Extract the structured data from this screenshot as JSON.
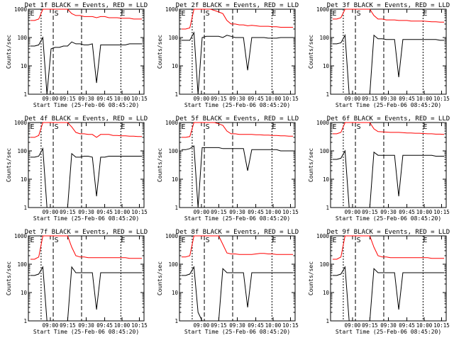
{
  "chart_data": [
    {
      "type": "line",
      "title": "Det 1f BLACK = Events, RED = LLD",
      "xlabel": "Start Time (25-Feb-06 08:45:20)",
      "ylabel": "Counts/sec",
      "x_ticks": [
        "09:00",
        "09:15",
        "09:30",
        "09:45",
        "10:00",
        "10:15"
      ],
      "y_ticks": [
        "1",
        "10",
        "100",
        "1000"
      ],
      "ylim": [
        1,
        1000
      ],
      "y_scale": "log",
      "markers": [
        "E",
        "S",
        "E"
      ],
      "series": [
        {
          "color": "#000000",
          "values": [
            50,
            50,
            55,
            100,
            1,
            40,
            45,
            45,
            50,
            50,
            70,
            60,
            60,
            55,
            55,
            60,
            2.5,
            55,
            55,
            55,
            55,
            55,
            55,
            55,
            60,
            60,
            60,
            60
          ]
        },
        {
          "color": "#ff0000",
          "values": [
            400,
            400,
            450,
            1000,
            1000,
            1000,
            1000,
            1000,
            1000,
            1000,
            700,
            600,
            600,
            550,
            550,
            550,
            500,
            550,
            550,
            500,
            500,
            500,
            480,
            480,
            480,
            450,
            450,
            450
          ]
        }
      ]
    },
    {
      "type": "line",
      "title": "Det 2f BLACK = Events, RED = LLD",
      "xlabel": "Start Time (25-Feb-06 08:45:20)",
      "ylabel": "Counts/sec",
      "x_ticks": [
        "09:00",
        "09:15",
        "09:30",
        "09:45",
        "10:00",
        "10:15"
      ],
      "y_ticks": [
        "1",
        "10",
        "100",
        "1000"
      ],
      "ylim": [
        1,
        1000
      ],
      "y_scale": "log",
      "markers": [
        "E",
        "S",
        "E"
      ],
      "series": [
        {
          "color": "#000000",
          "values": [
            80,
            80,
            80,
            150,
            1,
            100,
            110,
            110,
            110,
            110,
            100,
            120,
            110,
            100,
            100,
            100,
            7,
            100,
            100,
            100,
            100,
            95,
            95,
            95,
            100,
            100,
            100,
            100
          ]
        },
        {
          "color": "#ff0000",
          "values": [
            200,
            200,
            220,
            1000,
            1000,
            1000,
            1000,
            1000,
            900,
            800,
            700,
            400,
            300,
            300,
            280,
            280,
            260,
            270,
            260,
            250,
            250,
            250,
            240,
            240,
            230,
            230,
            230,
            230
          ]
        }
      ]
    },
    {
      "type": "line",
      "title": "Det 3f BLACK = Events, RED = LLD",
      "xlabel": "Start Time (25-Feb-06 08:45:20)",
      "ylabel": "Counts/sec",
      "x_ticks": [
        "09:00",
        "09:15",
        "09:30",
        "09:45",
        "10:00",
        "10:15"
      ],
      "y_ticks": [
        "1",
        "10",
        "100",
        "1000"
      ],
      "ylim": [
        1,
        1000
      ],
      "y_scale": "log",
      "markers": [
        "E",
        "S",
        "E"
      ],
      "series": [
        {
          "color": "#000000",
          "values": [
            60,
            60,
            65,
            120,
            1,
            1,
            1,
            1,
            1,
            1,
            120,
            90,
            90,
            85,
            85,
            85,
            4,
            85,
            85,
            85,
            85,
            85,
            85,
            85,
            85,
            85,
            80,
            80
          ]
        },
        {
          "color": "#ff0000",
          "values": [
            450,
            450,
            500,
            1000,
            1000,
            1000,
            1000,
            1000,
            1000,
            1000,
            600,
            450,
            450,
            420,
            420,
            420,
            400,
            400,
            400,
            380,
            380,
            380,
            380,
            370,
            360,
            360,
            350,
            350
          ]
        }
      ]
    },
    {
      "type": "line",
      "title": "Det 4f BLACK = Events, RED = LLD",
      "xlabel": "Start Time (25-Feb-06 08:45:20)",
      "ylabel": "Counts/sec",
      "x_ticks": [
        "09:00",
        "09:15",
        "09:30",
        "09:45",
        "10:00",
        "10:15"
      ],
      "y_ticks": [
        "1",
        "10",
        "100",
        "1000"
      ],
      "ylim": [
        1,
        1000
      ],
      "y_scale": "log",
      "markers": [
        "E",
        "S",
        "E"
      ],
      "series": [
        {
          "color": "#000000",
          "values": [
            60,
            60,
            65,
            120,
            1,
            1,
            1,
            1,
            1,
            1,
            80,
            60,
            60,
            65,
            65,
            60,
            2.5,
            60,
            60,
            65,
            65,
            65,
            65,
            65,
            65,
            65,
            65,
            65
          ]
        },
        {
          "color": "#ff0000",
          "values": [
            300,
            300,
            350,
            1000,
            1000,
            1000,
            1000,
            1000,
            1000,
            1000,
            700,
            450,
            400,
            400,
            380,
            380,
            300,
            380,
            380,
            380,
            350,
            350,
            340,
            340,
            330,
            330,
            320,
            320
          ]
        }
      ]
    },
    {
      "type": "line",
      "title": "Det 5f BLACK = Events, RED = LLD",
      "xlabel": "Start Time (25-Feb-06 08:45:20)",
      "ylabel": "Counts/sec",
      "x_ticks": [
        "09:00",
        "09:15",
        "09:30",
        "09:45",
        "10:00",
        "10:15"
      ],
      "y_ticks": [
        "1",
        "10",
        "100",
        "1000"
      ],
      "ylim": [
        1,
        1000
      ],
      "y_scale": "log",
      "markers": [
        "E",
        "S",
        "E"
      ],
      "series": [
        {
          "color": "#000000",
          "values": [
            110,
            110,
            120,
            150,
            1,
            130,
            130,
            130,
            130,
            130,
            120,
            120,
            120,
            120,
            120,
            120,
            20,
            110,
            110,
            110,
            110,
            110,
            110,
            110,
            100,
            100,
            100,
            100
          ]
        },
        {
          "color": "#ff0000",
          "values": [
            300,
            300,
            320,
            1000,
            1000,
            1000,
            1000,
            1000,
            1000,
            900,
            800,
            500,
            400,
            400,
            380,
            380,
            380,
            380,
            370,
            370,
            360,
            360,
            350,
            350,
            340,
            340,
            330,
            330
          ]
        }
      ]
    },
    {
      "type": "line",
      "title": "Det 6f BLACK = Events, RED = LLD",
      "xlabel": "Start Time (25-Feb-06 08:45:20)",
      "ylabel": "Counts/sec",
      "x_ticks": [
        "09:00",
        "09:15",
        "09:30",
        "09:45",
        "10:00",
        "10:15"
      ],
      "y_ticks": [
        "1",
        "10",
        "100",
        "1000"
      ],
      "ylim": [
        1,
        1000
      ],
      "y_scale": "log",
      "markers": [
        "E",
        "S",
        "E"
      ],
      "series": [
        {
          "color": "#000000",
          "values": [
            50,
            50,
            55,
            100,
            1,
            1,
            1,
            1,
            1,
            1,
            90,
            70,
            70,
            70,
            70,
            70,
            2.5,
            70,
            70,
            70,
            70,
            70,
            70,
            70,
            70,
            65,
            65,
            65
          ]
        },
        {
          "color": "#ff0000",
          "values": [
            400,
            400,
            450,
            1000,
            1000,
            1000,
            1000,
            1000,
            1000,
            1000,
            600,
            480,
            470,
            460,
            450,
            450,
            450,
            440,
            430,
            430,
            420,
            420,
            410,
            400,
            400,
            390,
            390,
            380
          ]
        }
      ]
    },
    {
      "type": "line",
      "title": "Det 7f BLACK = Events, RED = LLD",
      "xlabel": "Start Time (25-Feb-06 08:45:20)",
      "ylabel": "Counts/sec",
      "x_ticks": [
        "09:00",
        "09:15",
        "09:30",
        "09:45",
        "10:00",
        "10:15"
      ],
      "y_ticks": [
        "1",
        "10",
        "100",
        "1000"
      ],
      "ylim": [
        1,
        1000
      ],
      "y_scale": "log",
      "markers": [
        "E",
        "S",
        "E"
      ],
      "series": [
        {
          "color": "#000000",
          "values": [
            40,
            40,
            45,
            80,
            1,
            1,
            1,
            1,
            1,
            1,
            80,
            50,
            50,
            50,
            50,
            50,
            2.5,
            50,
            50,
            50,
            50,
            50,
            50,
            50,
            50,
            50,
            50,
            50
          ]
        },
        {
          "color": "#ff0000",
          "values": [
            150,
            150,
            180,
            1000,
            1000,
            1000,
            1000,
            1000,
            1000,
            1000,
            400,
            200,
            180,
            180,
            170,
            170,
            170,
            170,
            170,
            170,
            170,
            170,
            170,
            170,
            160,
            160,
            160,
            160
          ]
        }
      ]
    },
    {
      "type": "line",
      "title": "Det 8f BLACK = Events, RED = LLD",
      "xlabel": "Start Time (25-Feb-06 08:45:20)",
      "ylabel": "Counts/sec",
      "x_ticks": [
        "09:00",
        "09:15",
        "09:30",
        "09:45",
        "10:00",
        "10:15"
      ],
      "y_ticks": [
        "1",
        "10",
        "100",
        "1000"
      ],
      "ylim": [
        1,
        1000
      ],
      "y_scale": "log",
      "markers": [
        "E",
        "S",
        "E"
      ],
      "series": [
        {
          "color": "#000000",
          "values": [
            40,
            40,
            45,
            80,
            2,
            1,
            1,
            1,
            1,
            1,
            70,
            50,
            50,
            50,
            50,
            50,
            3,
            50,
            50,
            50,
            50,
            50,
            50,
            50,
            50,
            50,
            50,
            50
          ]
        },
        {
          "color": "#ff0000",
          "values": [
            180,
            180,
            200,
            1000,
            1000,
            1000,
            1000,
            1000,
            1000,
            1000,
            500,
            250,
            230,
            230,
            220,
            220,
            220,
            220,
            230,
            240,
            240,
            230,
            230,
            220,
            220,
            220,
            220,
            220
          ]
        }
      ]
    },
    {
      "type": "line",
      "title": "Det 9f BLACK = Events, RED = LLD",
      "xlabel": "Start Time (25-Feb-06 08:45:20)",
      "ylabel": "Counts/sec",
      "x_ticks": [
        "09:00",
        "09:15",
        "09:30",
        "09:45",
        "10:00",
        "10:15"
      ],
      "y_ticks": [
        "1",
        "10",
        "100",
        "1000"
      ],
      "ylim": [
        1,
        1000
      ],
      "y_scale": "log",
      "markers": [
        "E",
        "S",
        "E"
      ],
      "series": [
        {
          "color": "#000000",
          "values": [
            40,
            40,
            45,
            80,
            1,
            1,
            1,
            1,
            1,
            1,
            70,
            50,
            50,
            50,
            50,
            50,
            2.5,
            50,
            50,
            50,
            50,
            50,
            50,
            50,
            50,
            50,
            50,
            50
          ]
        },
        {
          "color": "#ff0000",
          "values": [
            150,
            150,
            180,
            1000,
            1000,
            1000,
            1000,
            1000,
            1000,
            1000,
            400,
            200,
            180,
            180,
            170,
            170,
            170,
            170,
            170,
            170,
            170,
            170,
            170,
            170,
            160,
            160,
            160,
            160
          ]
        }
      ]
    }
  ]
}
